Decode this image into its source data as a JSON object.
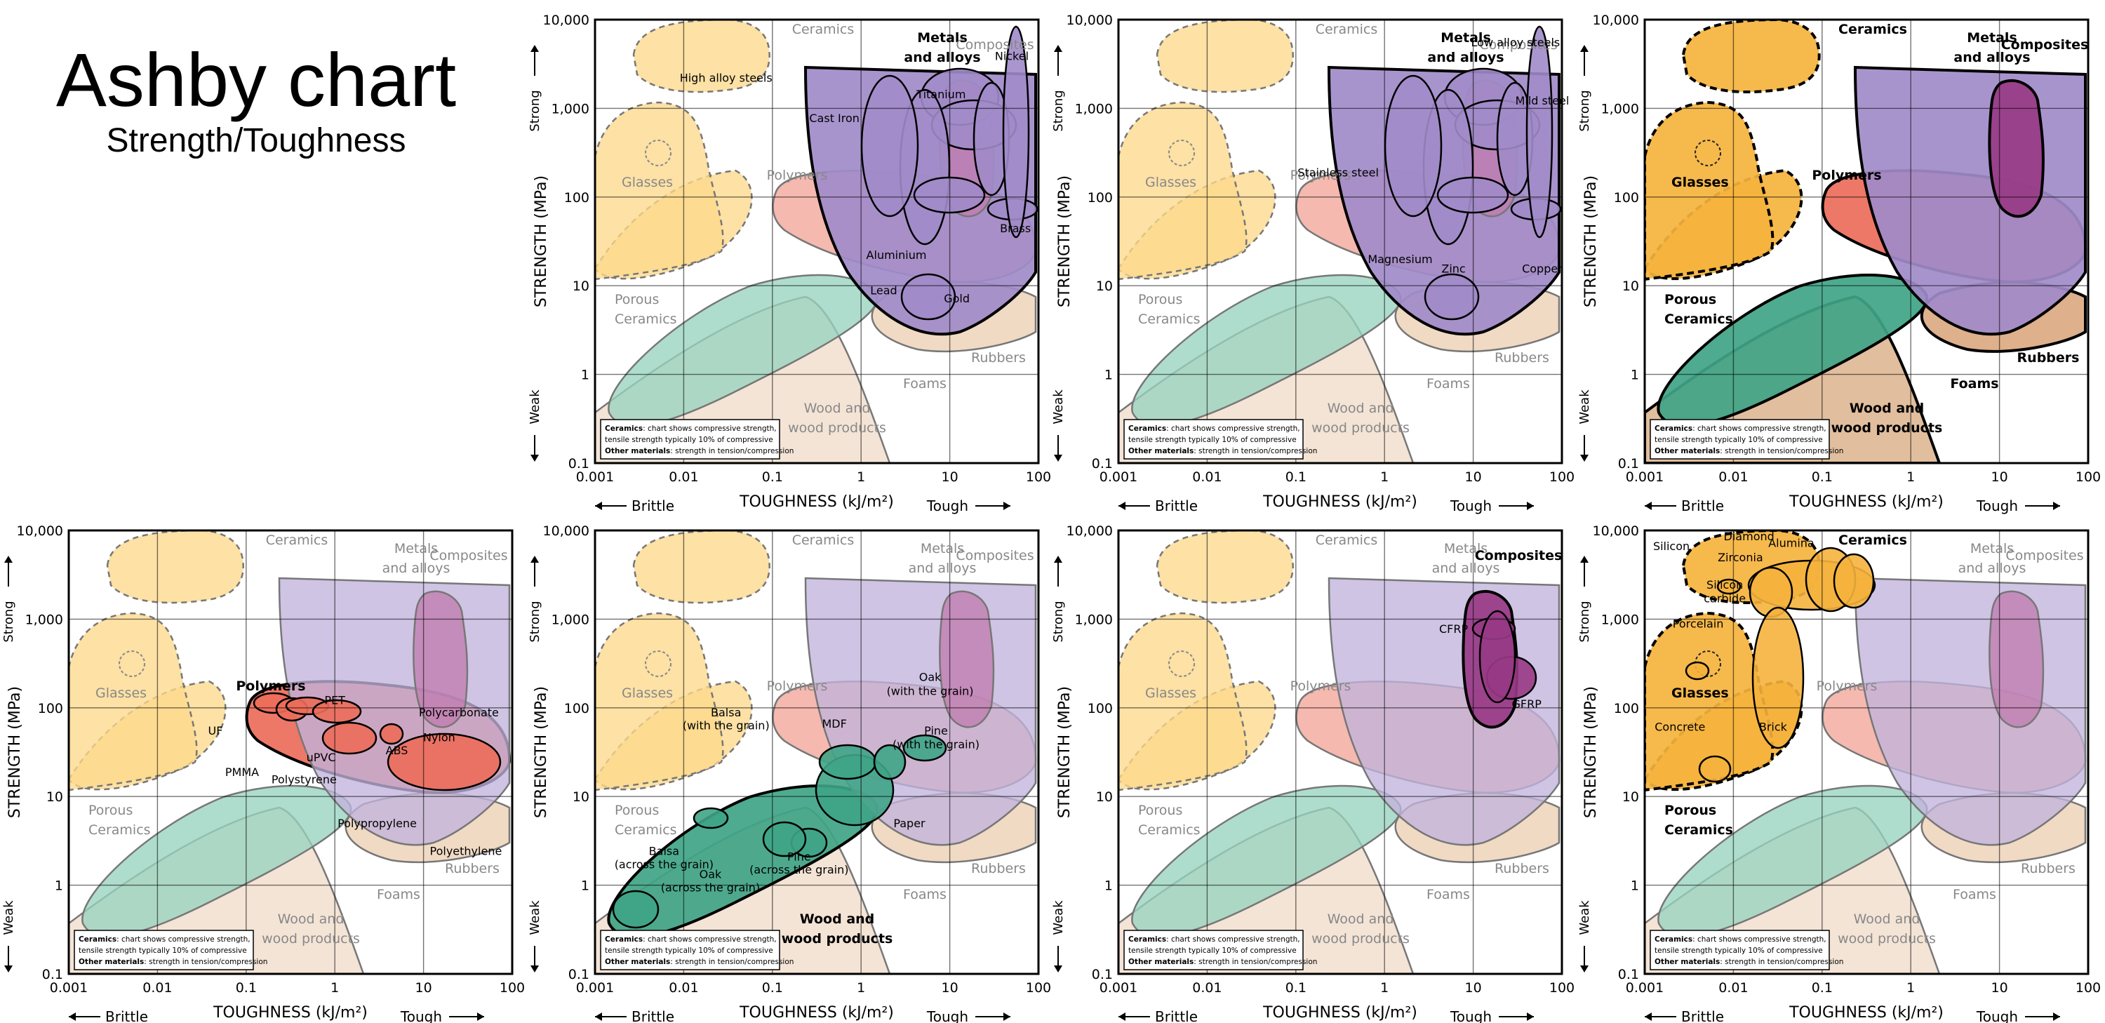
{
  "page": {
    "title": "Ashby chart",
    "subtitle": "Strength/Toughness"
  },
  "colors": {
    "ceramics": "#fdd98c",
    "ceramics_hl": "#f5b33d",
    "metals": "#c2b4dc",
    "metals_hl": "#a18bc9",
    "composites": "#c07cb0",
    "composites_hl": "#983a85",
    "polymers": "#f2a598",
    "polymers_hl": "#ec6d5a",
    "rubbers": "#ecd0b4",
    "rubbers_hl": "#dba982",
    "foams": "#f1ddca",
    "foams_hl": "#deb896",
    "wood": "#97d4bf",
    "wood_hl": "#3fa486"
  },
  "legend_note": {
    "line1_bold": "Ceramics",
    "line1": ": chart shows compressive strength,",
    "line2": "tensile strength typically 10% of compressive",
    "line3_bold": "Other materials",
    "line3": ": strength in tension/compression"
  },
  "chart_data": [
    {
      "type": "area",
      "chart_id": "metals",
      "highlight": "metals",
      "xlabel": "TOUGHNESS (kJ/m²)",
      "ylabel": "STRENGTH (MPa)",
      "x_scale": "log",
      "y_scale": "log",
      "xlim": [
        0.001,
        100
      ],
      "ylim": [
        0.1,
        10000
      ],
      "x_ticks": [
        "0.001",
        "0.01",
        "0.1",
        "1",
        "10",
        "100"
      ],
      "y_ticks": [
        "0.1",
        "1",
        "10",
        "100",
        "1,000",
        "10,000"
      ],
      "x_annotations": [
        "Brittle",
        "Tough"
      ],
      "y_annotations": [
        "Weak",
        "Strong"
      ],
      "grid": true,
      "family_labels": [
        "Ceramics",
        "Metals and alloys",
        "Composites",
        "Glasses",
        "Polymers",
        "Porous Ceramics",
        "Rubbers",
        "Foams",
        "Wood and wood products"
      ],
      "material_labels": [
        {
          "text": "High alloy steels",
          "x": 0.03,
          "y": 2000
        },
        {
          "text": "Nickel",
          "x": 50,
          "y": 3500
        },
        {
          "text": "Titanium",
          "x": 8,
          "y": 1300
        },
        {
          "text": "Cast Iron",
          "x": 0.5,
          "y": 700
        },
        {
          "text": "Brass",
          "x": 55,
          "y": 40
        },
        {
          "text": "Aluminium",
          "x": 2.5,
          "y": 20
        },
        {
          "text": "Lead",
          "x": 1.8,
          "y": 8
        },
        {
          "text": "Gold",
          "x": 12,
          "y": 6.5
        }
      ]
    },
    {
      "type": "area",
      "chart_id": "steels",
      "highlight": "metals",
      "xlabel": "TOUGHNESS (kJ/m²)",
      "ylabel": "STRENGTH (MPa)",
      "x_scale": "log",
      "y_scale": "log",
      "xlim": [
        0.001,
        100
      ],
      "ylim": [
        0.1,
        10000
      ],
      "x_ticks": [
        "0.001",
        "0.01",
        "0.1",
        "1",
        "10",
        "100"
      ],
      "y_ticks": [
        "0.1",
        "1",
        "10",
        "100",
        "1,000",
        "10,000"
      ],
      "x_annotations": [
        "Brittle",
        "Tough"
      ],
      "y_annotations": [
        "Weak",
        "Strong"
      ],
      "grid": true,
      "family_labels": [
        "Ceramics",
        "Metals and alloys",
        "Composites",
        "Glasses",
        "Polymers",
        "Porous Ceramics",
        "Rubbers",
        "Foams",
        "Wood and wood products"
      ],
      "material_labels": [
        {
          "text": "Low alloy steels",
          "x": 30,
          "y": 5000
        },
        {
          "text": "Mild steel",
          "x": 60,
          "y": 1100
        },
        {
          "text": "Stainless steel",
          "x": 0.3,
          "y": 170
        },
        {
          "text": "Magnesium",
          "x": 1.5,
          "y": 18
        },
        {
          "text": "Zinc",
          "x": 6,
          "y": 14
        },
        {
          "text": "Copper",
          "x": 60,
          "y": 14
        }
      ]
    },
    {
      "type": "area",
      "chart_id": "families",
      "highlight": "all",
      "xlabel": "TOUGHNESS (kJ/m²)",
      "ylabel": "STRENGTH (MPa)",
      "x_scale": "log",
      "y_scale": "log",
      "xlim": [
        0.001,
        100
      ],
      "ylim": [
        0.1,
        10000
      ],
      "x_ticks": [
        "0.001",
        "0.01",
        "0.1",
        "1",
        "10",
        "100"
      ],
      "y_ticks": [
        "0.1",
        "1",
        "10",
        "100",
        "1,000",
        "10,000"
      ],
      "x_annotations": [
        "Brittle",
        "Tough"
      ],
      "y_annotations": [
        "Weak",
        "Strong"
      ],
      "grid": true,
      "family_labels": [
        "Ceramics",
        "Metals and alloys",
        "Composites",
        "Glasses",
        "Polymers",
        "Porous Ceramics",
        "Rubbers",
        "Foams",
        "Wood and wood products"
      ],
      "material_labels": []
    },
    {
      "type": "area",
      "chart_id": "polymers",
      "highlight": "polymers",
      "xlabel": "TOUGHNESS (kJ/m²)",
      "ylabel": "STRENGTH (MPa)",
      "x_scale": "log",
      "y_scale": "log",
      "xlim": [
        0.001,
        100
      ],
      "ylim": [
        0.1,
        10000
      ],
      "x_ticks": [
        "0.001",
        "0.01",
        "0.1",
        "1",
        "10",
        "100"
      ],
      "y_ticks": [
        "0.1",
        "1",
        "10",
        "100",
        "1,000",
        "10,000"
      ],
      "x_annotations": [
        "Brittle",
        "Tough"
      ],
      "y_annotations": [
        "Weak",
        "Strong"
      ],
      "grid": true,
      "family_labels": [
        "Ceramics",
        "Metals and alloys",
        "Composites",
        "Glasses",
        "Polymers",
        "Porous Ceramics",
        "Rubbers",
        "Foams",
        "Wood and wood products"
      ],
      "material_labels": [
        {
          "text": "UF",
          "x": 0.045,
          "y": 50
        },
        {
          "text": "PET",
          "x": 1.0,
          "y": 110
        },
        {
          "text": "Polycarbonate",
          "x": 25,
          "y": 80
        },
        {
          "text": "PMMA",
          "x": 0.09,
          "y": 17
        },
        {
          "text": "Polystyrene",
          "x": 0.45,
          "y": 14
        },
        {
          "text": "uPVC",
          "x": 0.7,
          "y": 25
        },
        {
          "text": "ABS",
          "x": 5,
          "y": 30
        },
        {
          "text": "Nylon",
          "x": 15,
          "y": 42
        },
        {
          "text": "Polypropylene",
          "x": 3,
          "y": 4.5
        },
        {
          "text": "Polyethylene",
          "x": 30,
          "y": 2.2
        }
      ]
    },
    {
      "type": "area",
      "chart_id": "wood",
      "highlight": "wood",
      "xlabel": "TOUGHNESS (kJ/m²)",
      "ylabel": "STRENGTH (MPa)",
      "x_scale": "log",
      "y_scale": "log",
      "xlim": [
        0.001,
        100
      ],
      "ylim": [
        0.1,
        10000
      ],
      "x_ticks": [
        "0.001",
        "0.01",
        "0.1",
        "1",
        "10",
        "100"
      ],
      "y_ticks": [
        "0.1",
        "1",
        "10",
        "100",
        "1,000",
        "10,000"
      ],
      "x_annotations": [
        "Brittle",
        "Tough"
      ],
      "y_annotations": [
        "Weak",
        "Strong"
      ],
      "grid": true,
      "family_labels": [
        "Ceramics",
        "Metals and alloys",
        "Composites",
        "Glasses",
        "Polymers",
        "Porous Ceramics",
        "Rubbers",
        "Foams",
        "Wood and wood products"
      ],
      "material_labels": [
        {
          "text": "Oak",
          "x": 6,
          "y": 200
        },
        {
          "text": "(with the grain)",
          "x": 6,
          "y": 140
        },
        {
          "text": "Balsa",
          "x": 0.03,
          "y": 80
        },
        {
          "text": "(with the grain)",
          "x": 0.03,
          "y": 57
        },
        {
          "text": "MDF",
          "x": 0.5,
          "y": 60
        },
        {
          "text": "Pine",
          "x": 7,
          "y": 50
        },
        {
          "text": "(with the grain)",
          "x": 7,
          "y": 35
        },
        {
          "text": "Paper",
          "x": 3.5,
          "y": 4.5
        },
        {
          "text": "Balsa",
          "x": 0.006,
          "y": 2.2
        },
        {
          "text": "(across the grain)",
          "x": 0.006,
          "y": 1.55
        },
        {
          "text": "Pine",
          "x": 0.2,
          "y": 1.9
        },
        {
          "text": "(across the grain)",
          "x": 0.2,
          "y": 1.35
        },
        {
          "text": "Oak",
          "x": 0.02,
          "y": 1.2
        },
        {
          "text": "(across the grain)",
          "x": 0.02,
          "y": 0.85
        }
      ]
    },
    {
      "type": "area",
      "chart_id": "composites",
      "highlight": "composites",
      "xlabel": "TOUGHNESS (kJ/m²)",
      "ylabel": "STRENGTH (MPa)",
      "x_scale": "log",
      "y_scale": "log",
      "xlim": [
        0.001,
        100
      ],
      "ylim": [
        0.1,
        10000
      ],
      "x_ticks": [
        "0.001",
        "0.01",
        "0.1",
        "1",
        "10",
        "100"
      ],
      "y_ticks": [
        "0.1",
        "1",
        "10",
        "100",
        "1,000",
        "10,000"
      ],
      "x_annotations": [
        "Brittle",
        "Tough"
      ],
      "y_annotations": [
        "Weak",
        "Strong"
      ],
      "grid": true,
      "family_labels": [
        "Ceramics",
        "Metals and alloys",
        "Composites",
        "Glasses",
        "Polymers",
        "Porous Ceramics",
        "Rubbers",
        "Foams",
        "Wood and wood products"
      ],
      "material_labels": [
        {
          "text": "CFRP",
          "x": 6,
          "y": 700
        },
        {
          "text": "GFRP",
          "x": 40,
          "y": 100
        }
      ]
    },
    {
      "type": "area",
      "chart_id": "ceramics",
      "highlight": "ceramics",
      "xlabel": "TOUGHNESS (kJ/m²)",
      "ylabel": "STRENGTH (MPa)",
      "x_scale": "log",
      "y_scale": "log",
      "xlim": [
        0.001,
        100
      ],
      "ylim": [
        0.1,
        10000
      ],
      "x_ticks": [
        "0.001",
        "0.01",
        "0.1",
        "1",
        "10",
        "100"
      ],
      "y_ticks": [
        "0.1",
        "1",
        "10",
        "100",
        "1,000",
        "10,000"
      ],
      "x_annotations": [
        "Brittle",
        "Tough"
      ],
      "y_annotations": [
        "Weak",
        "Strong"
      ],
      "grid": true,
      "family_labels": [
        "Ceramics",
        "Metals and alloys",
        "Composites",
        "Glasses",
        "Polymers",
        "Porous Ceramics",
        "Rubbers",
        "Foams",
        "Wood and wood products"
      ],
      "material_labels": [
        {
          "text": "Diamond",
          "x": 0.015,
          "y": 12500
        },
        {
          "text": "Silicon",
          "x": 0.002,
          "y": 6000
        },
        {
          "text": "Alumina",
          "x": 0.045,
          "y": 6500
        },
        {
          "text": "Zirconia",
          "x": 0.012,
          "y": 4500
        },
        {
          "text": "Silicon",
          "x": 0.008,
          "y": 2200
        },
        {
          "text": "carbide",
          "x": 0.008,
          "y": 1550
        },
        {
          "text": "Porcelain",
          "x": 0.004,
          "y": 800
        },
        {
          "text": "Brick",
          "x": 0.028,
          "y": 55
        },
        {
          "text": "Concrete",
          "x": 0.0025,
          "y": 55
        }
      ]
    }
  ]
}
